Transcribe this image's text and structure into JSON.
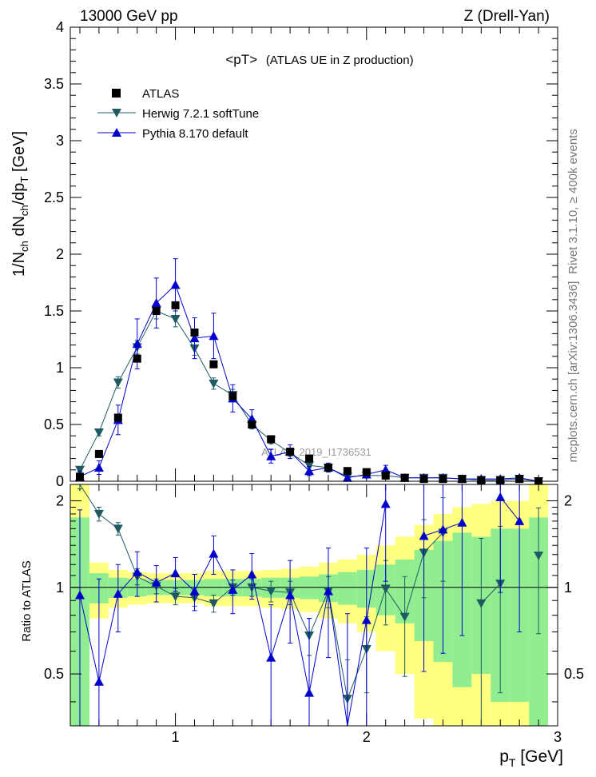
{
  "header": {
    "left": "13000 GeV pp",
    "right": "Z (Drell-Yan)"
  },
  "side_labels": {
    "rivet": "Rivet 3.1.10, ≥ 400k events",
    "mcplots": "mcplots.cern.ch [arXiv:1306.3436]"
  },
  "watermark": "ATLAS_2019_I1736531",
  "colors": {
    "data": "#000000",
    "herwig": "#1f5a63",
    "pythia": "#0000cc",
    "band_1sigma": "#90ee90",
    "band_2sigma": "#ffff80"
  },
  "chart_data": [
    {
      "type": "scatter",
      "panel": "main",
      "title": "<pT>",
      "subtitle": "(ATLAS UE in Z production)",
      "ylabel": "1/N_ch dN_ch/dp_T [GeV]",
      "ylim": [
        0,
        4
      ],
      "xlim": [
        0.45,
        3.0
      ],
      "yticks": [
        "0",
        "0.5",
        "1",
        "1.5",
        "2",
        "2.5",
        "3",
        "3.5",
        "4"
      ],
      "legend_position": "top-left",
      "x": [
        0.5,
        0.6,
        0.7,
        0.8,
        0.9,
        1.0,
        1.1,
        1.2,
        1.3,
        1.4,
        1.5,
        1.6,
        1.7,
        1.8,
        1.9,
        2.0,
        2.1,
        2.2,
        2.3,
        2.4,
        2.5,
        2.6,
        2.7,
        2.8,
        2.9
      ],
      "series": [
        {
          "name": "ATLAS",
          "marker": "square",
          "values": [
            0.04,
            0.24,
            0.56,
            1.08,
            1.5,
            1.55,
            1.31,
            1.03,
            0.75,
            0.5,
            0.37,
            0.26,
            0.2,
            0.12,
            0.09,
            0.08,
            0.05,
            0.03,
            0.02,
            0.02,
            0.02,
            0.01,
            0.01,
            0.02,
            0.0
          ]
        },
        {
          "name": "Herwig 7.2.1 softTune",
          "marker": "triangle-down",
          "values": [
            0.1,
            0.43,
            0.87,
            1.18,
            1.5,
            1.43,
            1.17,
            0.86,
            0.76,
            0.5,
            0.36,
            0.25,
            0.14,
            0.12,
            0.04,
            0.05,
            0.05,
            0.03,
            0.03,
            0.03,
            0.02,
            0.01,
            0.01,
            0.02,
            0.0
          ],
          "errors": [
            0.02,
            0.03,
            0.05,
            0.06,
            0.07,
            0.07,
            0.06,
            0.05,
            0.05,
            0.04,
            0.03,
            0.03,
            0.02,
            0.02,
            0.01,
            0.01,
            0.01,
            0.01,
            0.01,
            0.01,
            0.01,
            0.01,
            0.01,
            0.01,
            0.0
          ]
        },
        {
          "name": "Pythia 8.170 default",
          "marker": "triangle-up",
          "values": [
            0.04,
            0.12,
            0.54,
            1.21,
            1.57,
            1.73,
            1.26,
            1.28,
            0.73,
            0.55,
            0.22,
            0.26,
            0.09,
            0.12,
            0.03,
            0.06,
            0.1,
            0.03,
            0.03,
            0.03,
            0.02,
            0.02,
            0.02,
            0.03,
            0.0
          ],
          "errors": [
            0.05,
            0.06,
            0.13,
            0.22,
            0.22,
            0.23,
            0.18,
            0.2,
            0.12,
            0.08,
            0.06,
            0.06,
            0.04,
            0.04,
            0.03,
            0.03,
            0.04,
            0.02,
            0.02,
            0.02,
            0.02,
            0.02,
            0.02,
            0.02,
            0.0
          ]
        }
      ]
    },
    {
      "type": "line",
      "panel": "ratio",
      "ylabel": "Ratio to ATLAS",
      "xlabel": "p_T [GeV]",
      "ylim": [
        0.33,
        2.28
      ],
      "xlim": [
        0.45,
        3.0
      ],
      "yticks": [
        "0.5",
        "1",
        "2"
      ],
      "xticks": [
        "1",
        "2",
        "3"
      ],
      "x": [
        0.5,
        0.6,
        0.7,
        0.8,
        0.9,
        1.0,
        1.1,
        1.2,
        1.3,
        1.4,
        1.5,
        1.6,
        1.7,
        1.8,
        1.9,
        2.0,
        2.1,
        2.2,
        2.3,
        2.4,
        2.5,
        2.6,
        2.7,
        2.8,
        2.9
      ],
      "band_1sigma": [
        0.75,
        0.12,
        0.08,
        0.07,
        0.06,
        0.06,
        0.06,
        0.07,
        0.07,
        0.07,
        0.08,
        0.08,
        0.09,
        0.11,
        0.13,
        0.15,
        0.2,
        0.25,
        0.35,
        0.45,
        0.55,
        0.5,
        0.6,
        0.6,
        0.75
      ],
      "band_2sigma": [
        1.3,
        0.22,
        0.15,
        0.13,
        0.12,
        0.12,
        0.12,
        0.14,
        0.14,
        0.14,
        0.15,
        0.16,
        0.18,
        0.22,
        0.25,
        0.3,
        0.4,
        0.5,
        0.65,
        0.8,
        0.9,
        0.95,
        1.0,
        1.0,
        1.3
      ],
      "series": [
        {
          "name": "Herwig 7.2.1 softTune",
          "values": [
            2.6,
            1.8,
            1.6,
            1.09,
            1.01,
            0.93,
            0.92,
            0.88,
            1.0,
            1.0,
            0.97,
            0.96,
            0.68,
            0.97,
            0.41,
            0.61,
            0.99,
            0.79,
            1.32,
            1.55,
            null,
            0.88,
            1.03,
            null,
            1.29
          ],
          "errors": [
            0.4,
            0.1,
            0.08,
            0.07,
            0.06,
            0.06,
            0.06,
            0.06,
            0.06,
            0.07,
            0.08,
            0.09,
            0.1,
            0.12,
            0.15,
            0.18,
            0.25,
            0.3,
            0.4,
            0.5,
            0.6,
            0.6,
            0.6,
            0.6,
            0.6
          ]
        },
        {
          "name": "Pythia 8.170 default",
          "values": [
            0.94,
            0.47,
            0.95,
            1.13,
            1.04,
            1.12,
            0.97,
            1.31,
            0.98,
            1.11,
            0.57,
            0.94,
            0.43,
            0.97,
            0.31,
            0.77,
            1.95,
            null,
            1.51,
            1.59,
            1.68,
            null,
            2.06,
            1.7,
            null
          ],
          "errors": [
            0.92,
            0.6,
            0.25,
            0.2,
            0.15,
            0.15,
            0.14,
            0.2,
            0.17,
            0.2,
            0.3,
            0.3,
            0.35,
            0.4,
            0.5,
            0.6,
            0.9,
            0.9,
            1.0,
            1.0,
            1.0,
            1.0,
            1.1,
            1.0,
            1.0
          ]
        }
      ]
    }
  ]
}
